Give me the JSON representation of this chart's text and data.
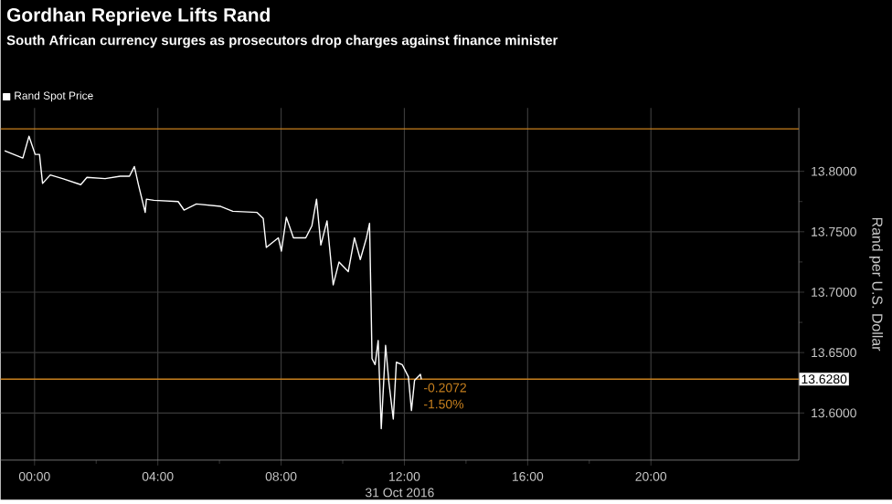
{
  "chart_data": {
    "type": "line",
    "title": "Gordhan Reprieve Lifts Rand",
    "subtitle": "South African currency surges as prosecutors drop charges against finance minister",
    "xlabel": "31 Oct 2016",
    "ylabel": "Rand per U.S. Dollar",
    "series": [
      {
        "name": "Rand Spot Price",
        "color": "#ffffff",
        "x": [
          -0.97,
          -0.38,
          -0.18,
          0.02,
          0.16,
          0.26,
          0.51,
          0.91,
          1.5,
          1.7,
          2.29,
          2.78,
          3.08,
          3.24,
          3.37,
          3.59,
          3.63,
          3.87,
          4.66,
          4.85,
          5.25,
          6.04,
          6.43,
          7.22,
          7.42,
          7.52,
          7.91,
          8.01,
          8.17,
          8.4,
          8.8,
          9.0,
          9.15,
          9.29,
          9.49,
          9.69,
          9.88,
          10.18,
          10.38,
          10.57,
          10.77,
          10.87,
          10.93,
          10.95,
          11.05,
          11.15,
          11.25,
          11.39,
          11.5,
          11.64,
          11.74,
          11.93,
          12.13,
          12.23,
          12.33,
          12.52,
          12.55
        ],
        "values": [
          13.817,
          13.811,
          13.829,
          13.814,
          13.814,
          13.79,
          13.797,
          13.794,
          13.789,
          13.795,
          13.794,
          13.796,
          13.796,
          13.804,
          13.789,
          13.766,
          13.777,
          13.776,
          13.775,
          13.768,
          13.773,
          13.771,
          13.767,
          13.766,
          13.761,
          13.737,
          13.745,
          13.734,
          13.762,
          13.745,
          13.745,
          13.755,
          13.777,
          13.739,
          13.759,
          13.706,
          13.725,
          13.717,
          13.745,
          13.727,
          13.745,
          13.757,
          13.675,
          13.645,
          13.64,
          13.66,
          13.587,
          13.656,
          13.625,
          13.595,
          13.642,
          13.64,
          13.63,
          13.602,
          13.627,
          13.632,
          13.628
        ]
      }
    ],
    "xlim": [
      -1.1,
      24.8
    ],
    "xticks": [
      {
        "value": 0,
        "label": "00:00"
      },
      {
        "value": 4,
        "label": "04:00"
      },
      {
        "value": 8,
        "label": "08:00"
      },
      {
        "value": 12,
        "label": "12:00"
      },
      {
        "value": 16,
        "label": "16:00"
      },
      {
        "value": 20,
        "label": "20:00"
      }
    ],
    "ylim": [
      13.561,
      13.8525
    ],
    "yticks": [
      {
        "value": 13.6,
        "label": "13.6000"
      },
      {
        "value": 13.65,
        "label": "13.6500"
      },
      {
        "value": 13.7,
        "label": "13.7000"
      },
      {
        "value": 13.75,
        "label": "13.7500"
      },
      {
        "value": 13.8,
        "label": "13.8000"
      }
    ],
    "ref_lines": [
      {
        "axis": "y",
        "value": 13.8352,
        "color": "#c8801e"
      },
      {
        "axis": "y",
        "value": 13.628,
        "label": "13.6280",
        "color": "#c8801e"
      }
    ],
    "annotations": [
      "-0.2072",
      "-1.50%"
    ],
    "grid": true,
    "legend": "top left"
  }
}
